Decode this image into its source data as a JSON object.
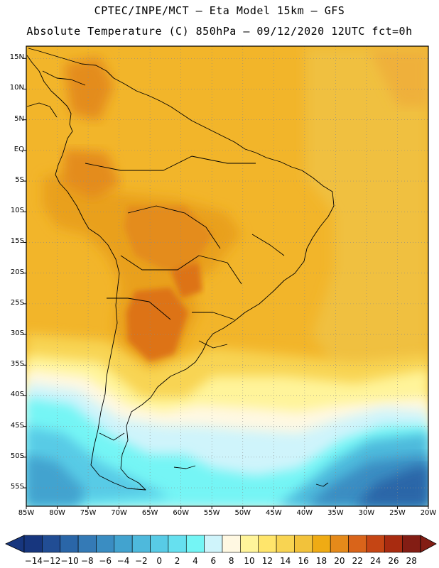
{
  "title_line1": "CPTEC/INPE/MCT –  Eta Model 15km – GFS",
  "title_line2": "Absolute Temperature (C) 850hPa – 09/12/2020 12UTC fct=0h",
  "latitude_labels": [
    "15N",
    "10N",
    "5N",
    "EQ",
    "5S",
    "10S",
    "15S",
    "20S",
    "25S",
    "30S",
    "35S",
    "40S",
    "45S",
    "50S",
    "55S"
  ],
  "longitude_labels": [
    "85W",
    "80W",
    "75W",
    "70W",
    "65W",
    "60W",
    "55W",
    "50W",
    "45W",
    "40W",
    "35W",
    "30W",
    "25W",
    "20W"
  ],
  "colorbar": {
    "labels": [
      "-14",
      "-12",
      "-10",
      "-8",
      "-6",
      "-4",
      "-2",
      "0",
      "2",
      "4",
      "6",
      "8",
      "10",
      "12",
      "14",
      "16",
      "18",
      "20",
      "22",
      "24",
      "26",
      "28"
    ],
    "colors": [
      "#17367e",
      "#214d94",
      "#2a66a8",
      "#347ab6",
      "#3a8dc2",
      "#42a3cf",
      "#4eb9dc",
      "#58cbe6",
      "#66e0ef",
      "#74f5f5",
      "#cff4fb",
      "#fff8e2",
      "#fff49a",
      "#ffe56b",
      "#f8d452",
      "#f2c23b",
      "#efab14",
      "#e58a1a",
      "#d9641a",
      "#c54514",
      "#a82b10",
      "#831d14"
    ]
  },
  "map": {
    "grid": "dotted",
    "lon_range": [
      -85,
      -20
    ],
    "lat_range": [
      -58,
      17
    ],
    "field": "Absolute Temperature (C) 850hPa"
  }
}
